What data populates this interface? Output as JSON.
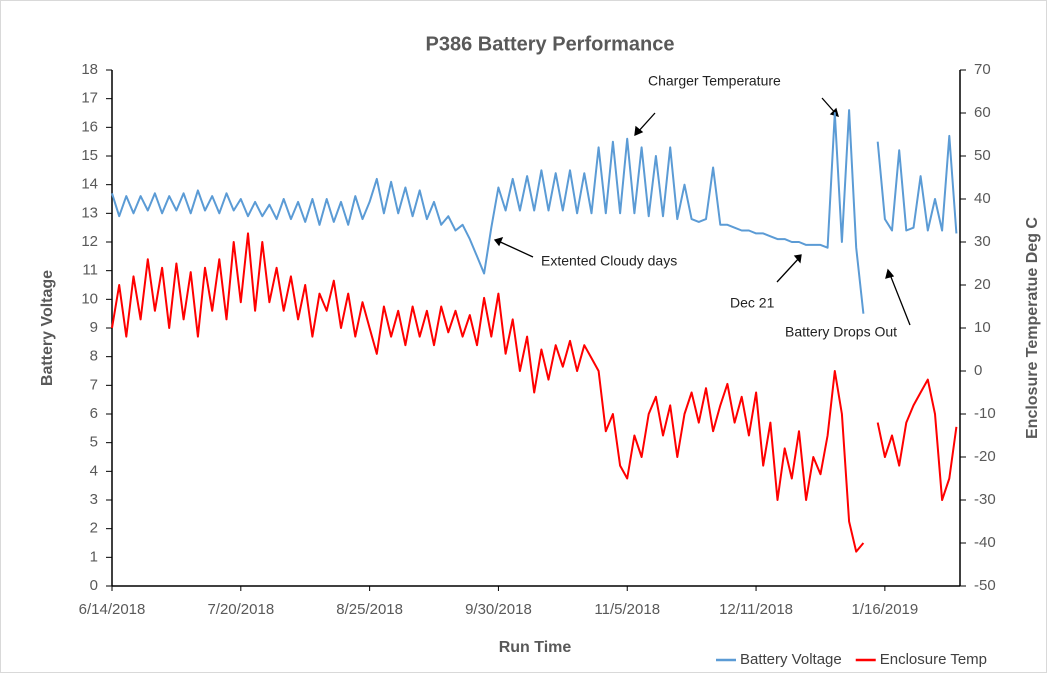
{
  "chart_data": {
    "type": "line",
    "title": "P386 Battery Performance",
    "x_label": "Run Time",
    "y_label": "Battery Voltage",
    "y2_label": "Enclosure Temperatue Deg C",
    "annotations": [
      "Charger Temperature",
      "Extented Cloudy days",
      "Dec 21",
      "Battery Drops Out"
    ],
    "x": [
      "2018-06-14",
      "2018-06-16",
      "2018-06-18",
      "2018-06-20",
      "2018-06-22",
      "2018-06-24",
      "2018-06-26",
      "2018-06-28",
      "2018-06-30",
      "2018-07-02",
      "2018-07-04",
      "2018-07-06",
      "2018-07-08",
      "2018-07-10",
      "2018-07-12",
      "2018-07-14",
      "2018-07-16",
      "2018-07-18",
      "2018-07-20",
      "2018-07-22",
      "2018-07-24",
      "2018-07-26",
      "2018-07-28",
      "2018-07-30",
      "2018-08-01",
      "2018-08-03",
      "2018-08-05",
      "2018-08-07",
      "2018-08-09",
      "2018-08-11",
      "2018-08-13",
      "2018-08-15",
      "2018-08-17",
      "2018-08-19",
      "2018-08-21",
      "2018-08-23",
      "2018-08-25",
      "2018-08-27",
      "2018-08-29",
      "2018-08-31",
      "2018-09-02",
      "2018-09-04",
      "2018-09-06",
      "2018-09-08",
      "2018-09-10",
      "2018-09-12",
      "2018-09-14",
      "2018-09-16",
      "2018-09-18",
      "2018-09-20",
      "2018-09-22",
      "2018-09-24",
      "2018-09-26",
      "2018-09-28",
      "2018-09-30",
      "2018-10-02",
      "2018-10-04",
      "2018-10-06",
      "2018-10-08",
      "2018-10-10",
      "2018-10-12",
      "2018-10-14",
      "2018-10-16",
      "2018-10-18",
      "2018-10-20",
      "2018-10-22",
      "2018-10-24",
      "2018-10-26",
      "2018-10-28",
      "2018-10-30",
      "2018-11-01",
      "2018-11-03",
      "2018-11-05",
      "2018-11-07",
      "2018-11-09",
      "2018-11-11",
      "2018-11-13",
      "2018-11-15",
      "2018-11-17",
      "2018-11-19",
      "2018-11-21",
      "2018-11-23",
      "2018-11-25",
      "2018-11-27",
      "2018-11-29",
      "2018-12-01",
      "2018-12-03",
      "2018-12-05",
      "2018-12-07",
      "2018-12-09",
      "2018-12-11",
      "2018-12-13",
      "2018-12-15",
      "2018-12-17",
      "2018-12-19",
      "2018-12-21",
      "2018-12-23",
      "2018-12-25",
      "2018-12-27",
      "2018-12-29",
      "2018-12-31",
      "2019-01-02",
      "2019-01-04",
      "2019-01-06",
      "2019-01-08",
      "2019-01-10",
      "2019-01-12",
      "2019-01-14",
      "2019-01-16",
      "2019-01-18",
      "2019-01-20",
      "2019-01-22",
      "2019-01-24",
      "2019-01-26",
      "2019-01-28",
      "2019-01-30",
      "2019-02-01",
      "2019-02-03",
      "2019-02-05"
    ],
    "series": [
      {
        "name": "Battery Voltage",
        "color": "#5b9bd5",
        "axis": "y",
        "values": [
          13.7,
          12.9,
          13.6,
          13.0,
          13.6,
          13.1,
          13.7,
          13.0,
          13.6,
          13.1,
          13.7,
          13.0,
          13.8,
          13.1,
          13.6,
          13.0,
          13.7,
          13.1,
          13.5,
          12.9,
          13.4,
          12.9,
          13.3,
          12.8,
          13.5,
          12.8,
          13.4,
          12.7,
          13.5,
          12.6,
          13.5,
          12.7,
          13.4,
          12.6,
          13.6,
          12.8,
          13.4,
          14.2,
          13.0,
          14.1,
          13.0,
          13.9,
          12.9,
          13.8,
          12.8,
          13.4,
          12.6,
          12.9,
          12.4,
          12.6,
          12.1,
          11.5,
          10.9,
          12.5,
          13.9,
          13.1,
          14.2,
          13.1,
          14.3,
          13.1,
          14.5,
          13.1,
          14.4,
          13.1,
          14.5,
          13.0,
          14.4,
          13.0,
          15.3,
          13.0,
          15.5,
          13.0,
          15.6,
          13.0,
          15.3,
          12.9,
          15.0,
          12.9,
          15.3,
          12.8,
          14.0,
          12.8,
          12.7,
          12.8,
          14.6,
          12.6,
          12.6,
          12.5,
          12.4,
          12.4,
          12.3,
          12.3,
          12.2,
          12.1,
          12.1,
          12.0,
          12.0,
          11.9,
          11.9,
          11.9,
          11.8,
          16.5,
          12.0,
          16.6,
          11.8,
          9.5,
          null,
          15.5,
          12.8,
          12.4,
          15.2,
          12.4,
          12.5,
          14.3,
          12.4,
          13.5,
          12.4,
          15.7,
          12.3
        ]
      },
      {
        "name": "Enclosure Temp",
        "color": "#ff0000",
        "axis": "y2",
        "values": [
          10,
          20,
          8,
          22,
          12,
          26,
          14,
          24,
          10,
          25,
          12,
          23,
          8,
          24,
          14,
          26,
          12,
          30,
          16,
          32,
          14,
          30,
          16,
          24,
          14,
          22,
          12,
          20,
          8,
          18,
          14,
          21,
          10,
          18,
          8,
          16,
          10,
          4,
          15,
          8,
          14,
          6,
          15,
          8,
          14,
          6,
          15,
          9,
          14,
          8,
          13,
          6,
          17,
          8,
          18,
          4,
          12,
          0,
          8,
          -5,
          5,
          -2,
          6,
          1,
          7,
          0,
          6,
          3,
          0,
          -14,
          -10,
          -22,
          -25,
          -15,
          -20,
          -10,
          -6,
          -15,
          -8,
          -20,
          -10,
          -5,
          -12,
          -4,
          -14,
          -8,
          -3,
          -12,
          -6,
          -15,
          -5,
          -22,
          -12,
          -30,
          -18,
          -25,
          -14,
          -30,
          -20,
          -24,
          -15,
          0,
          -10,
          -35,
          -42,
          -40,
          null,
          -12,
          -20,
          -15,
          -22,
          -12,
          -8,
          -5,
          -2,
          -10,
          -30,
          -25,
          -13
        ]
      }
    ],
    "xlim": [
      "2018-06-14",
      "2019-02-06"
    ],
    "xticks": [
      {
        "value": "2018-06-14",
        "label": "6/14/2018"
      },
      {
        "value": "2018-07-20",
        "label": "7/20/2018"
      },
      {
        "value": "2018-08-25",
        "label": "8/25/2018"
      },
      {
        "value": "2018-09-30",
        "label": "9/30/2018"
      },
      {
        "value": "2018-11-05",
        "label": "11/5/2018"
      },
      {
        "value": "2018-12-11",
        "label": "12/11/2018"
      },
      {
        "value": "2019-01-16",
        "label": "1/16/2019"
      }
    ],
    "ylim": [
      0,
      18
    ],
    "yticks": [
      0,
      1,
      2,
      3,
      4,
      5,
      6,
      7,
      8,
      9,
      10,
      11,
      12,
      13,
      14,
      15,
      16,
      17,
      18
    ],
    "y2lim": [
      -50,
      70
    ],
    "y2ticks": [
      -50,
      -40,
      -30,
      -20,
      -10,
      0,
      10,
      20,
      30,
      40,
      50,
      60,
      70
    ],
    "grid": false,
    "legend": "bottom-right"
  }
}
